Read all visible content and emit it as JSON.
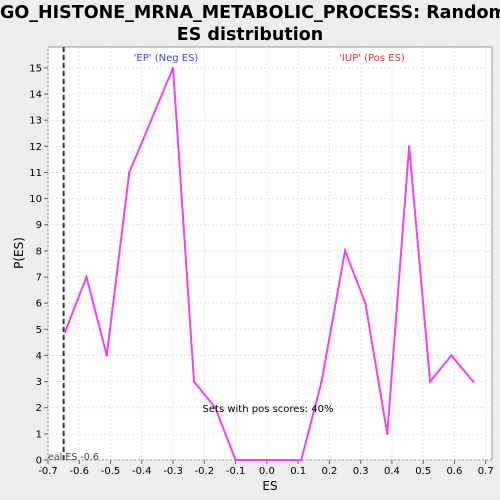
{
  "title_lines": [
    "GO_HISTONE_MRNA_METABOLIC_PROCESS: Random",
    "ES distribution"
  ],
  "chart_data": {
    "type": "line",
    "xlabel": "ES",
    "ylabel": "P(ES)",
    "xlim": [
      -0.7,
      0.72
    ],
    "ylim": [
      0,
      15.8
    ],
    "x_ticks": [
      -0.7,
      -0.6,
      -0.5,
      -0.4,
      -0.3,
      -0.2,
      -0.1,
      0.0,
      0.1,
      0.2,
      0.3,
      0.4,
      0.5,
      0.6,
      0.7
    ],
    "x_tick_labels": [
      "-0.7",
      "-0.6",
      "-0.5",
      "-0.4",
      "-0.3",
      "-0.2",
      "-0.1",
      "0.0",
      "0.1",
      "0.2",
      "0.3",
      "0.4",
      "0.5",
      "0.6",
      "0.7"
    ],
    "y_ticks": [
      0,
      1,
      2,
      3,
      4,
      5,
      6,
      7,
      8,
      9,
      10,
      11,
      12,
      13,
      14,
      15
    ],
    "y_tick_labels": [
      "0",
      "1",
      "2",
      "3",
      "4",
      "5",
      "6",
      "7",
      "8",
      "9",
      "10",
      "11",
      "12",
      "13",
      "14",
      "15"
    ],
    "grid": true,
    "series": [
      {
        "color": "#ee44ee",
        "points": [
          [
            -0.645,
            4.9
          ],
          [
            -0.577,
            7.0
          ],
          [
            -0.512,
            4.0
          ],
          [
            -0.44,
            11.0
          ],
          [
            -0.3,
            15.0
          ],
          [
            -0.233,
            3.0
          ],
          [
            -0.165,
            2.0
          ],
          [
            -0.1,
            0.0
          ],
          [
            0.0,
            0.0
          ],
          [
            0.11,
            0.0
          ],
          [
            0.175,
            3.0
          ],
          [
            0.25,
            8.0
          ],
          [
            0.315,
            6.0
          ],
          [
            0.385,
            1.0
          ],
          [
            0.455,
            12.0
          ],
          [
            0.522,
            3.0
          ],
          [
            0.59,
            4.0
          ],
          [
            0.66,
            3.0
          ]
        ]
      }
    ],
    "real_es": {
      "value": -0.65,
      "label": "eal ES -0.6"
    },
    "annotations": {
      "neg": {
        "text": "'EP' (Neg ES)",
        "color": "#4444cc"
      },
      "pos": {
        "text": "'IUP' (Pos ES)",
        "color": "#dd3333"
      },
      "pos_scores": {
        "text": "Sets with pos scores: 40%"
      }
    }
  }
}
